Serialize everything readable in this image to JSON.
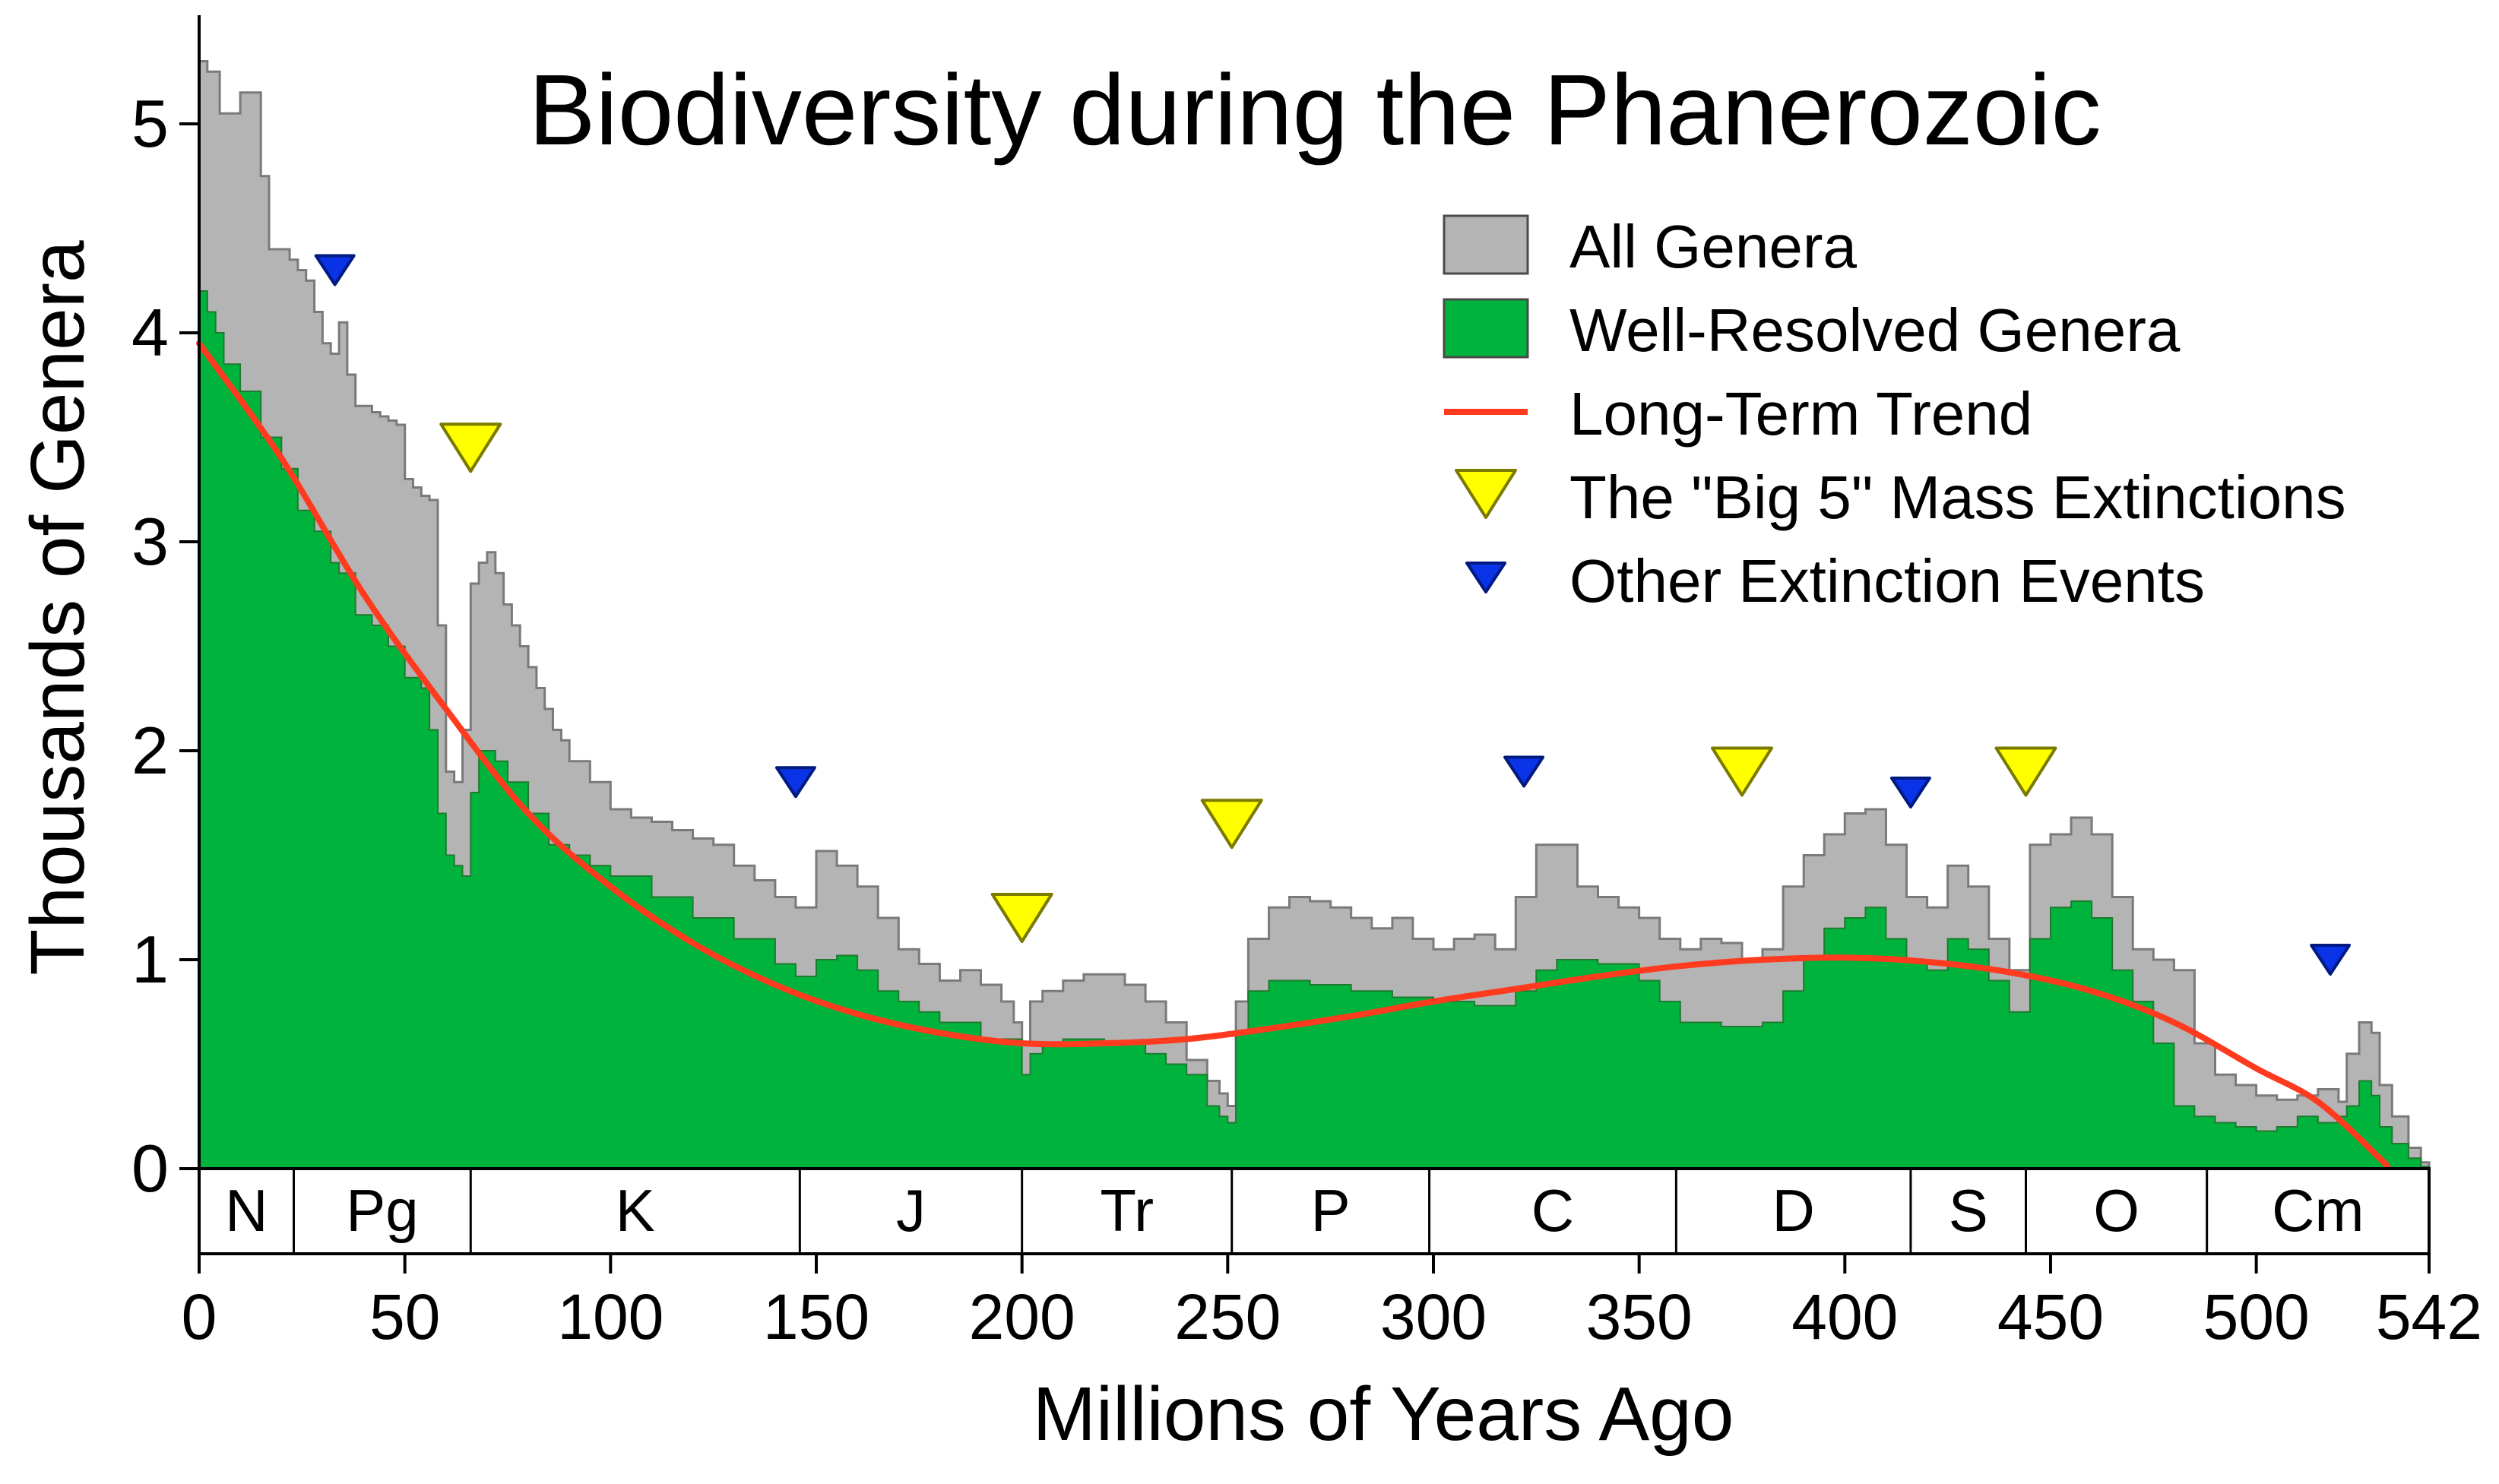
{
  "chart_data": {
    "type": "area",
    "title": "Biodiversity during the Phanerozoic",
    "xlabel": "Millions of Years Ago",
    "ylabel": "Thousands of Genera",
    "xlim": [
      0,
      542
    ],
    "ylim": [
      0,
      5.4
    ],
    "x_reversed": false,
    "grid": false,
    "legend_position": "top-right",
    "x_ticks": [
      0,
      50,
      100,
      150,
      200,
      250,
      300,
      350,
      400,
      450,
      500,
      542
    ],
    "x_tick_labels": [
      "0",
      "50",
      "100",
      "150",
      "200",
      "250",
      "300",
      "350",
      "400",
      "450",
      "500",
      "542"
    ],
    "y_ticks": [
      0,
      1,
      2,
      3,
      4,
      5
    ],
    "y_tick_labels": [
      "0",
      "1",
      "2",
      "3",
      "4",
      "5"
    ],
    "legend": [
      {
        "label": "All Genera",
        "kind": "swatch",
        "color": "#b4b4b4"
      },
      {
        "label": "Well-Resolved Genera",
        "kind": "swatch",
        "color": "#00b33c"
      },
      {
        "label": "Long-Term Trend",
        "kind": "line",
        "color": "#ff3b1f"
      },
      {
        "label": "The \"Big 5\" Mass Extinctions",
        "kind": "big-triangle",
        "color": "#ffff00"
      },
      {
        "label": "Other Extinction Events",
        "kind": "small-triangle",
        "color": "#0a32e6"
      }
    ],
    "periods": [
      {
        "label": "N",
        "start": 0,
        "end": 23
      },
      {
        "label": "Pg",
        "start": 23,
        "end": 66
      },
      {
        "label": "K",
        "start": 66,
        "end": 146
      },
      {
        "label": "J",
        "start": 146,
        "end": 200
      },
      {
        "label": "Tr",
        "start": 200,
        "end": 251
      },
      {
        "label": "P",
        "start": 251,
        "end": 299
      },
      {
        "label": "C",
        "start": 299,
        "end": 359
      },
      {
        "label": "D",
        "start": 359,
        "end": 416
      },
      {
        "label": "S",
        "start": 416,
        "end": 444
      },
      {
        "label": "O",
        "start": 444,
        "end": 488
      },
      {
        "label": "Cm",
        "start": 488,
        "end": 542
      }
    ],
    "series": [
      {
        "name": "All Genera",
        "color": "#b4b4b4",
        "x": [
          0,
          2,
          5,
          10,
          11,
          15,
          16,
          17,
          19,
          22,
          24,
          26,
          28,
          30,
          32,
          34,
          36,
          38,
          40,
          42,
          44,
          46,
          48,
          50,
          52,
          54,
          56,
          58,
          60,
          62,
          64,
          66,
          68,
          70,
          72,
          74,
          76,
          78,
          80,
          82,
          84,
          86,
          88,
          90,
          95,
          100,
          105,
          110,
          115,
          120,
          125,
          130,
          135,
          140,
          145,
          150,
          155,
          160,
          165,
          170,
          175,
          180,
          185,
          190,
          195,
          198,
          200,
          202,
          205,
          210,
          215,
          220,
          225,
          230,
          235,
          240,
          245,
          248,
          250,
          252,
          255,
          260,
          265,
          270,
          275,
          280,
          285,
          290,
          295,
          300,
          305,
          310,
          315,
          320,
          325,
          330,
          335,
          340,
          345,
          350,
          355,
          360,
          365,
          370,
          375,
          380,
          385,
          390,
          395,
          400,
          405,
          410,
          415,
          420,
          425,
          430,
          435,
          440,
          445,
          450,
          455,
          460,
          465,
          470,
          475,
          480,
          485,
          490,
          495,
          500,
          505,
          510,
          515,
          520,
          522,
          525,
          528,
          530,
          533,
          537,
          540,
          542
        ],
        "values": [
          5.3,
          5.25,
          5.05,
          5.15,
          5.15,
          4.75,
          4.75,
          4.4,
          4.4,
          4.35,
          4.3,
          4.25,
          4.1,
          3.95,
          3.9,
          4.05,
          3.8,
          3.65,
          3.65,
          3.62,
          3.6,
          3.58,
          3.56,
          3.3,
          3.26,
          3.22,
          3.2,
          2.6,
          1.9,
          1.85,
          2.1,
          2.8,
          2.9,
          2.95,
          2.85,
          2.7,
          2.6,
          2.5,
          2.4,
          2.3,
          2.2,
          2.1,
          2.05,
          1.95,
          1.85,
          1.72,
          1.68,
          1.66,
          1.62,
          1.58,
          1.55,
          1.45,
          1.38,
          1.3,
          1.25,
          1.52,
          1.45,
          1.35,
          1.2,
          1.05,
          0.98,
          0.9,
          0.95,
          0.88,
          0.8,
          0.7,
          0.6,
          0.8,
          0.85,
          0.9,
          0.93,
          0.93,
          0.88,
          0.8,
          0.7,
          0.52,
          0.42,
          0.36,
          0.3,
          0.8,
          1.1,
          1.25,
          1.3,
          1.28,
          1.25,
          1.2,
          1.15,
          1.2,
          1.1,
          1.05,
          1.1,
          1.12,
          1.05,
          1.3,
          1.55,
          1.55,
          1.35,
          1.3,
          1.25,
          1.2,
          1.1,
          1.05,
          1.1,
          1.08,
          1.0,
          1.05,
          1.35,
          1.5,
          1.6,
          1.7,
          1.72,
          1.55,
          1.3,
          1.25,
          1.45,
          1.35,
          1.1,
          0.95,
          1.55,
          1.6,
          1.68,
          1.6,
          1.3,
          1.05,
          1.0,
          0.95,
          0.6,
          0.45,
          0.4,
          0.35,
          0.33,
          0.35,
          0.38,
          0.32,
          0.55,
          0.7,
          0.65,
          0.4,
          0.25,
          0.1,
          0.03,
          0.02
        ]
      },
      {
        "name": "Well-Resolved Genera",
        "color": "#00b33c",
        "x": [
          0,
          2,
          4,
          6,
          10,
          11,
          15,
          20,
          24,
          28,
          32,
          34,
          38,
          42,
          46,
          50,
          54,
          56,
          58,
          60,
          62,
          64,
          66,
          68,
          70,
          72,
          75,
          80,
          85,
          90,
          95,
          100,
          110,
          120,
          130,
          140,
          145,
          150,
          155,
          160,
          165,
          170,
          175,
          180,
          190,
          200,
          202,
          205,
          210,
          220,
          230,
          235,
          240,
          245,
          248,
          250,
          252,
          255,
          260,
          270,
          280,
          290,
          300,
          310,
          320,
          325,
          330,
          340,
          350,
          355,
          360,
          370,
          380,
          385,
          390,
          395,
          400,
          405,
          410,
          415,
          420,
          425,
          430,
          435,
          440,
          445,
          450,
          455,
          460,
          465,
          470,
          475,
          480,
          485,
          490,
          495,
          500,
          505,
          510,
          515,
          520,
          522,
          525,
          528,
          530,
          533,
          537,
          540,
          542
        ],
        "values": [
          4.2,
          4.1,
          4.0,
          3.85,
          3.72,
          3.72,
          3.5,
          3.35,
          3.15,
          3.05,
          2.9,
          2.85,
          2.65,
          2.6,
          2.5,
          2.35,
          2.3,
          2.1,
          1.7,
          1.5,
          1.45,
          1.4,
          1.8,
          2.0,
          2.0,
          1.95,
          1.85,
          1.7,
          1.55,
          1.5,
          1.45,
          1.4,
          1.3,
          1.2,
          1.1,
          0.98,
          0.92,
          1.0,
          1.02,
          0.95,
          0.85,
          0.8,
          0.75,
          0.7,
          0.62,
          0.45,
          0.55,
          0.6,
          0.62,
          0.6,
          0.55,
          0.5,
          0.45,
          0.3,
          0.25,
          0.22,
          0.65,
          0.85,
          0.9,
          0.88,
          0.85,
          0.82,
          0.8,
          0.78,
          0.85,
          0.95,
          1.0,
          0.98,
          0.9,
          0.8,
          0.7,
          0.68,
          0.7,
          0.85,
          1.0,
          1.15,
          1.2,
          1.25,
          1.1,
          1.0,
          0.95,
          1.1,
          1.05,
          0.9,
          0.75,
          1.1,
          1.25,
          1.28,
          1.2,
          0.95,
          0.8,
          0.6,
          0.3,
          0.25,
          0.22,
          0.2,
          0.18,
          0.2,
          0.25,
          0.22,
          0.25,
          0.3,
          0.42,
          0.35,
          0.2,
          0.12,
          0.05,
          0.01,
          0.0
        ]
      },
      {
        "name": "Long-Term Trend",
        "color": "#ff3b1f",
        "x": [
          0,
          20,
          40,
          60,
          80,
          100,
          120,
          140,
          160,
          180,
          200,
          220,
          240,
          260,
          280,
          300,
          320,
          340,
          360,
          380,
          400,
          420,
          440,
          460,
          480,
          500,
          515,
          530,
          532
        ],
        "values": [
          3.95,
          3.4,
          2.75,
          2.2,
          1.7,
          1.35,
          1.08,
          0.88,
          0.74,
          0.65,
          0.6,
          0.6,
          0.62,
          0.67,
          0.73,
          0.8,
          0.86,
          0.92,
          0.97,
          1.0,
          1.01,
          0.99,
          0.94,
          0.85,
          0.7,
          0.48,
          0.32,
          0.05,
          0.0
        ]
      }
    ],
    "big5_extinctions": [
      66,
      200,
      251,
      375,
      444
    ],
    "big5_levels": [
      3.45,
      1.2,
      1.65,
      1.9,
      1.9
    ],
    "other_extinctions": [
      33,
      145,
      322,
      416,
      518
    ],
    "other_levels": [
      4.3,
      1.85,
      1.9,
      1.8,
      1.0
    ]
  }
}
